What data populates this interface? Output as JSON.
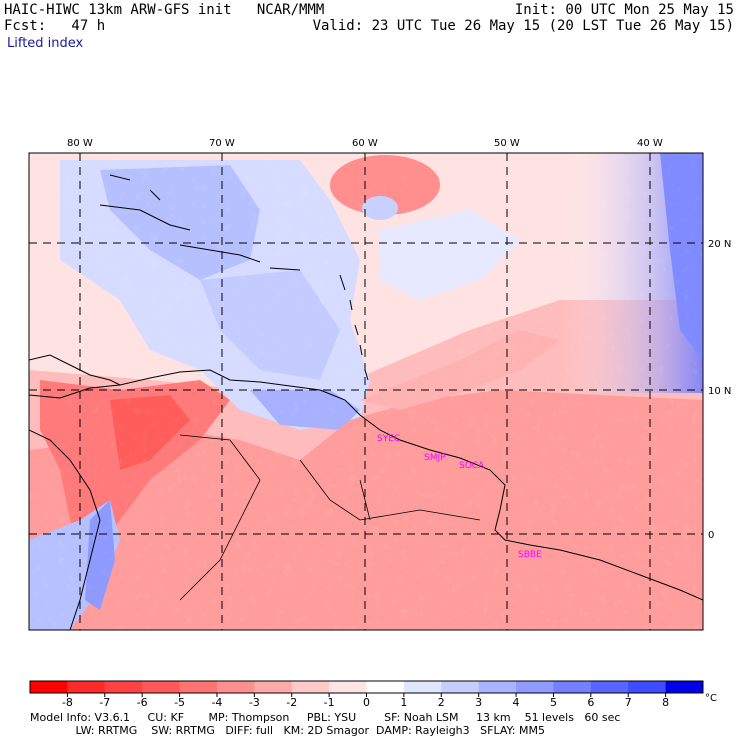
{
  "header": {
    "model_line": "HAIC-HIWC 13km ARW-GFS init   NCAR/MMM",
    "init_line": "Init: 00 UTC Mon 25 May 15",
    "fcst_line": "Fcst:   47 h",
    "valid_line": "Valid: 23 UTC Tue 26 May 15 (20 LST Tue 26 May 15)",
    "field_name": "Lifted index"
  },
  "map": {
    "lon_labels": [
      "80 W",
      "70 W",
      "60 W",
      "50 W",
      "40 W"
    ],
    "lon_values": [
      -80,
      -70,
      -60,
      -50,
      -40
    ],
    "lat_labels": [
      "20 N",
      "10 N",
      "0"
    ],
    "lat_values": [
      20,
      10,
      0
    ],
    "extent": {
      "lon_min": -83.5,
      "lon_max": -36.5,
      "lat_min": -6.5,
      "lat_max": 26.5
    },
    "stations": [
      {
        "id": "SYEC",
        "lon": -58.2,
        "lat": 6.5
      },
      {
        "id": "SMJP",
        "lon": -55.2,
        "lat": 5.5
      },
      {
        "id": "SOCA",
        "lon": -52.4,
        "lat": 4.8
      },
      {
        "id": "SBBE",
        "lon": -48.5,
        "lat": -1.4
      }
    ],
    "colors": {
      "station": "#ff00ff",
      "coast": "#000000",
      "grid": "#000000"
    }
  },
  "colorbar": {
    "ticks": [
      "-8",
      "-7",
      "-6",
      "-5",
      "-4",
      "-3",
      "-2",
      "-1",
      "0",
      "1",
      "2",
      "3",
      "4",
      "5",
      "6",
      "7",
      "8"
    ],
    "unit": "°C",
    "colors": [
      "#ff0000",
      "#ff2a2a",
      "#ff4343",
      "#ff5959",
      "#ff7373",
      "#ff8f8f",
      "#ffaaaa",
      "#ffc9c9",
      "#ffe4e4",
      "#ffffff",
      "#e1e6ff",
      "#c6ceff",
      "#a9b4ff",
      "#8f9bff",
      "#7481ff",
      "#5866ff",
      "#3f4dff",
      "#0000e8"
    ]
  },
  "footer": {
    "line1": "Model Info: V3.6.1     CU: KF       MP: Thompson     PBL: YSU        SF: Noah LSM     13 km    51 levels   60 sec",
    "line2": "             LW: RRTMG    SW: RRTMG   DIFF: full   KM: 2D Smagor  DAMP: Rayleigh3   SFLAY: MM5"
  }
}
